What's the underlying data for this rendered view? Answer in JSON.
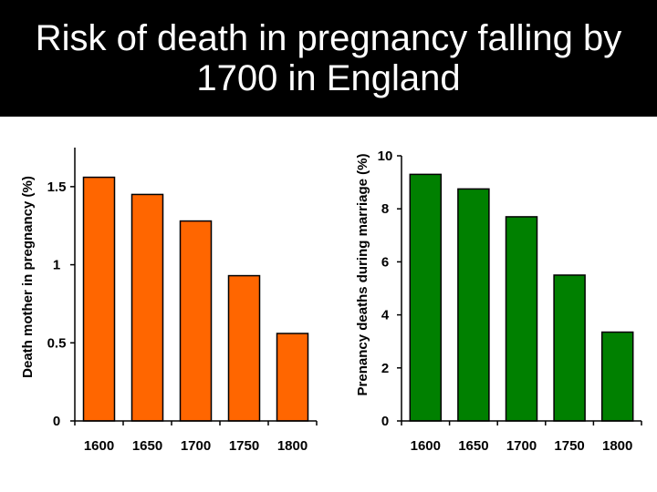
{
  "slide": {
    "title_line1": "Risk of death in pregnancy falling by",
    "title_line2": "1700 in England"
  },
  "chart_data": [
    {
      "type": "bar",
      "categories": [
        "1600",
        "1650",
        "1700",
        "1750",
        "1800"
      ],
      "values": [
        1.56,
        1.45,
        1.28,
        0.93,
        0.56
      ],
      "ylabel": "Death mother in pregnancy (%)",
      "xlabel": "",
      "ylim": [
        0,
        1.75
      ],
      "yticks": [
        0,
        0.5,
        1,
        1.5
      ],
      "ytick_labels": [
        "0",
        "0.5",
        "1",
        "1.5"
      ],
      "bar_color": "#ff6600",
      "grid": false
    },
    {
      "type": "bar",
      "categories": [
        "1600",
        "1650",
        "1700",
        "1750",
        "1800"
      ],
      "values": [
        9.3,
        8.75,
        7.7,
        5.5,
        3.35
      ],
      "ylabel": "Prenancy deaths during marriage (%)",
      "xlabel": "",
      "ylim": [
        0,
        10
      ],
      "yticks": [
        0,
        2,
        4,
        6,
        8,
        10
      ],
      "ytick_labels": [
        "0",
        "2",
        "4",
        "6",
        "8",
        "10"
      ],
      "bar_color": "#008000",
      "grid": false
    }
  ]
}
